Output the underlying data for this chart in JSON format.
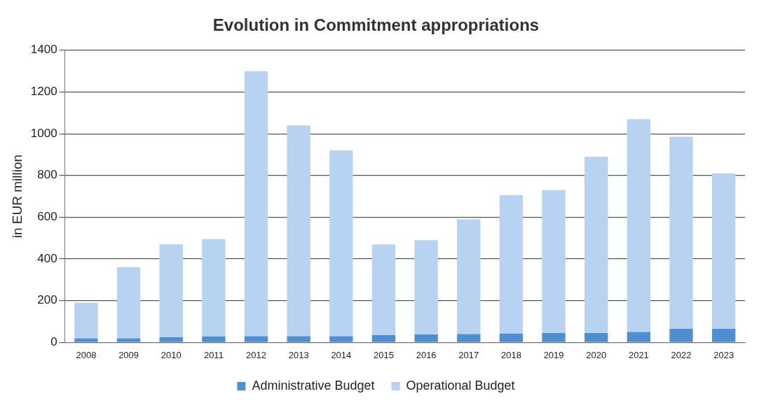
{
  "chart_data": {
    "type": "bar",
    "title": "Evolution in Commitment appropriations",
    "ylabel": "in EUR million",
    "categories": [
      "2008",
      "2009",
      "2010",
      "2011",
      "2012",
      "2013",
      "2014",
      "2015",
      "2016",
      "2017",
      "2018",
      "2019",
      "2020",
      "2021",
      "2022",
      "2023"
    ],
    "stacked": true,
    "series": [
      {
        "name": "Administrative Budget",
        "color": "#4f8fd0",
        "values": [
          20,
          20,
          25,
          28,
          30,
          30,
          30,
          35,
          38,
          40,
          42,
          45,
          45,
          50,
          65,
          65
        ]
      },
      {
        "name": "Operational Budget",
        "color": "#b8d3f2",
        "values": [
          170,
          340,
          445,
          467,
          1270,
          1010,
          890,
          435,
          452,
          550,
          663,
          685,
          845,
          1020,
          920,
          745
        ]
      }
    ],
    "ylim": [
      0,
      1400
    ],
    "yticks": [
      0,
      200,
      400,
      600,
      800,
      1000,
      1200,
      1400
    ],
    "grid": "y",
    "legend": "bottom"
  }
}
